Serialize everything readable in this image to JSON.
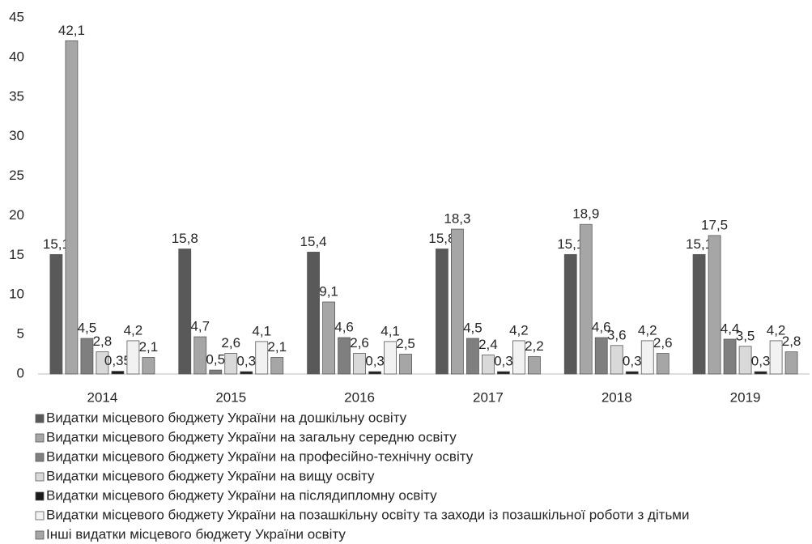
{
  "chart_data": {
    "type": "bar",
    "categories": [
      "2014",
      "2015",
      "2016",
      "2017",
      "2018",
      "2019"
    ],
    "series": [
      {
        "name": "Видатки місцевого бюджету України на дошкільну освіту",
        "color": "#595959",
        "values": [
          15.1,
          15.8,
          15.4,
          15.8,
          15.1,
          15.1
        ],
        "value_labels": [
          "15,1",
          "15,8",
          "15,4",
          "15,8",
          "15,1",
          "15,1"
        ]
      },
      {
        "name": "Видатки місцевого бюджету України на загальну середню освіту",
        "color": "#a6a6a6",
        "values": [
          42.1,
          4.7,
          9.1,
          18.3,
          18.9,
          17.5
        ],
        "value_labels": [
          "42,1",
          "4,7",
          "9,1",
          "18,3",
          "18,9",
          "17,5"
        ]
      },
      {
        "name": "Видатки місцевого бюджету України на професійно-технічну освіту",
        "color": "#7f7f7f",
        "values": [
          4.5,
          0.5,
          4.6,
          4.5,
          4.6,
          4.4
        ],
        "value_labels": [
          "4,5",
          "0,5",
          "4,6",
          "4,5",
          "4,6",
          "4,4"
        ]
      },
      {
        "name": "Видатки місцевого бюджету України на вищу освіту",
        "color": "#d9d9d9",
        "values": [
          2.8,
          2.6,
          2.6,
          2.4,
          3.6,
          3.5
        ],
        "value_labels": [
          "2,8",
          "2,6",
          "2,6",
          "2,4",
          "3,6",
          "3,5"
        ]
      },
      {
        "name": "Видатки місцевого бюджету України на післядипломну освіту",
        "color": "#1a1a1a",
        "values": [
          0.35,
          0.3,
          0.3,
          0.3,
          0.3,
          0.3
        ],
        "value_labels": [
          "0,35",
          "0,3",
          "0,3",
          "0,3",
          "0,3",
          "0,3"
        ]
      },
      {
        "name": "Видатки місцевого бюджету України на позашкільну освіту та заходи із позашкільної роботи з дітьми",
        "color": "#f2f2f2",
        "values": [
          4.2,
          4.1,
          4.1,
          4.2,
          4.2,
          4.2
        ],
        "value_labels": [
          "4,2",
          "4,1",
          "4,1",
          "4,2",
          "4,2",
          "4,2"
        ]
      },
      {
        "name": "Інші видатки місцевого бюджету України освіту",
        "color": "#a6a6a6",
        "values": [
          2.1,
          2.1,
          2.5,
          2.2,
          2.6,
          2.8
        ],
        "value_labels": [
          "2,1",
          "2,1",
          "2,5",
          "2,2",
          "2,6",
          "2,8"
        ]
      }
    ],
    "ylim": [
      0,
      45
    ],
    "yticks": [
      0,
      5,
      10,
      15,
      20,
      25,
      30,
      35,
      40,
      45
    ],
    "grid": false
  }
}
